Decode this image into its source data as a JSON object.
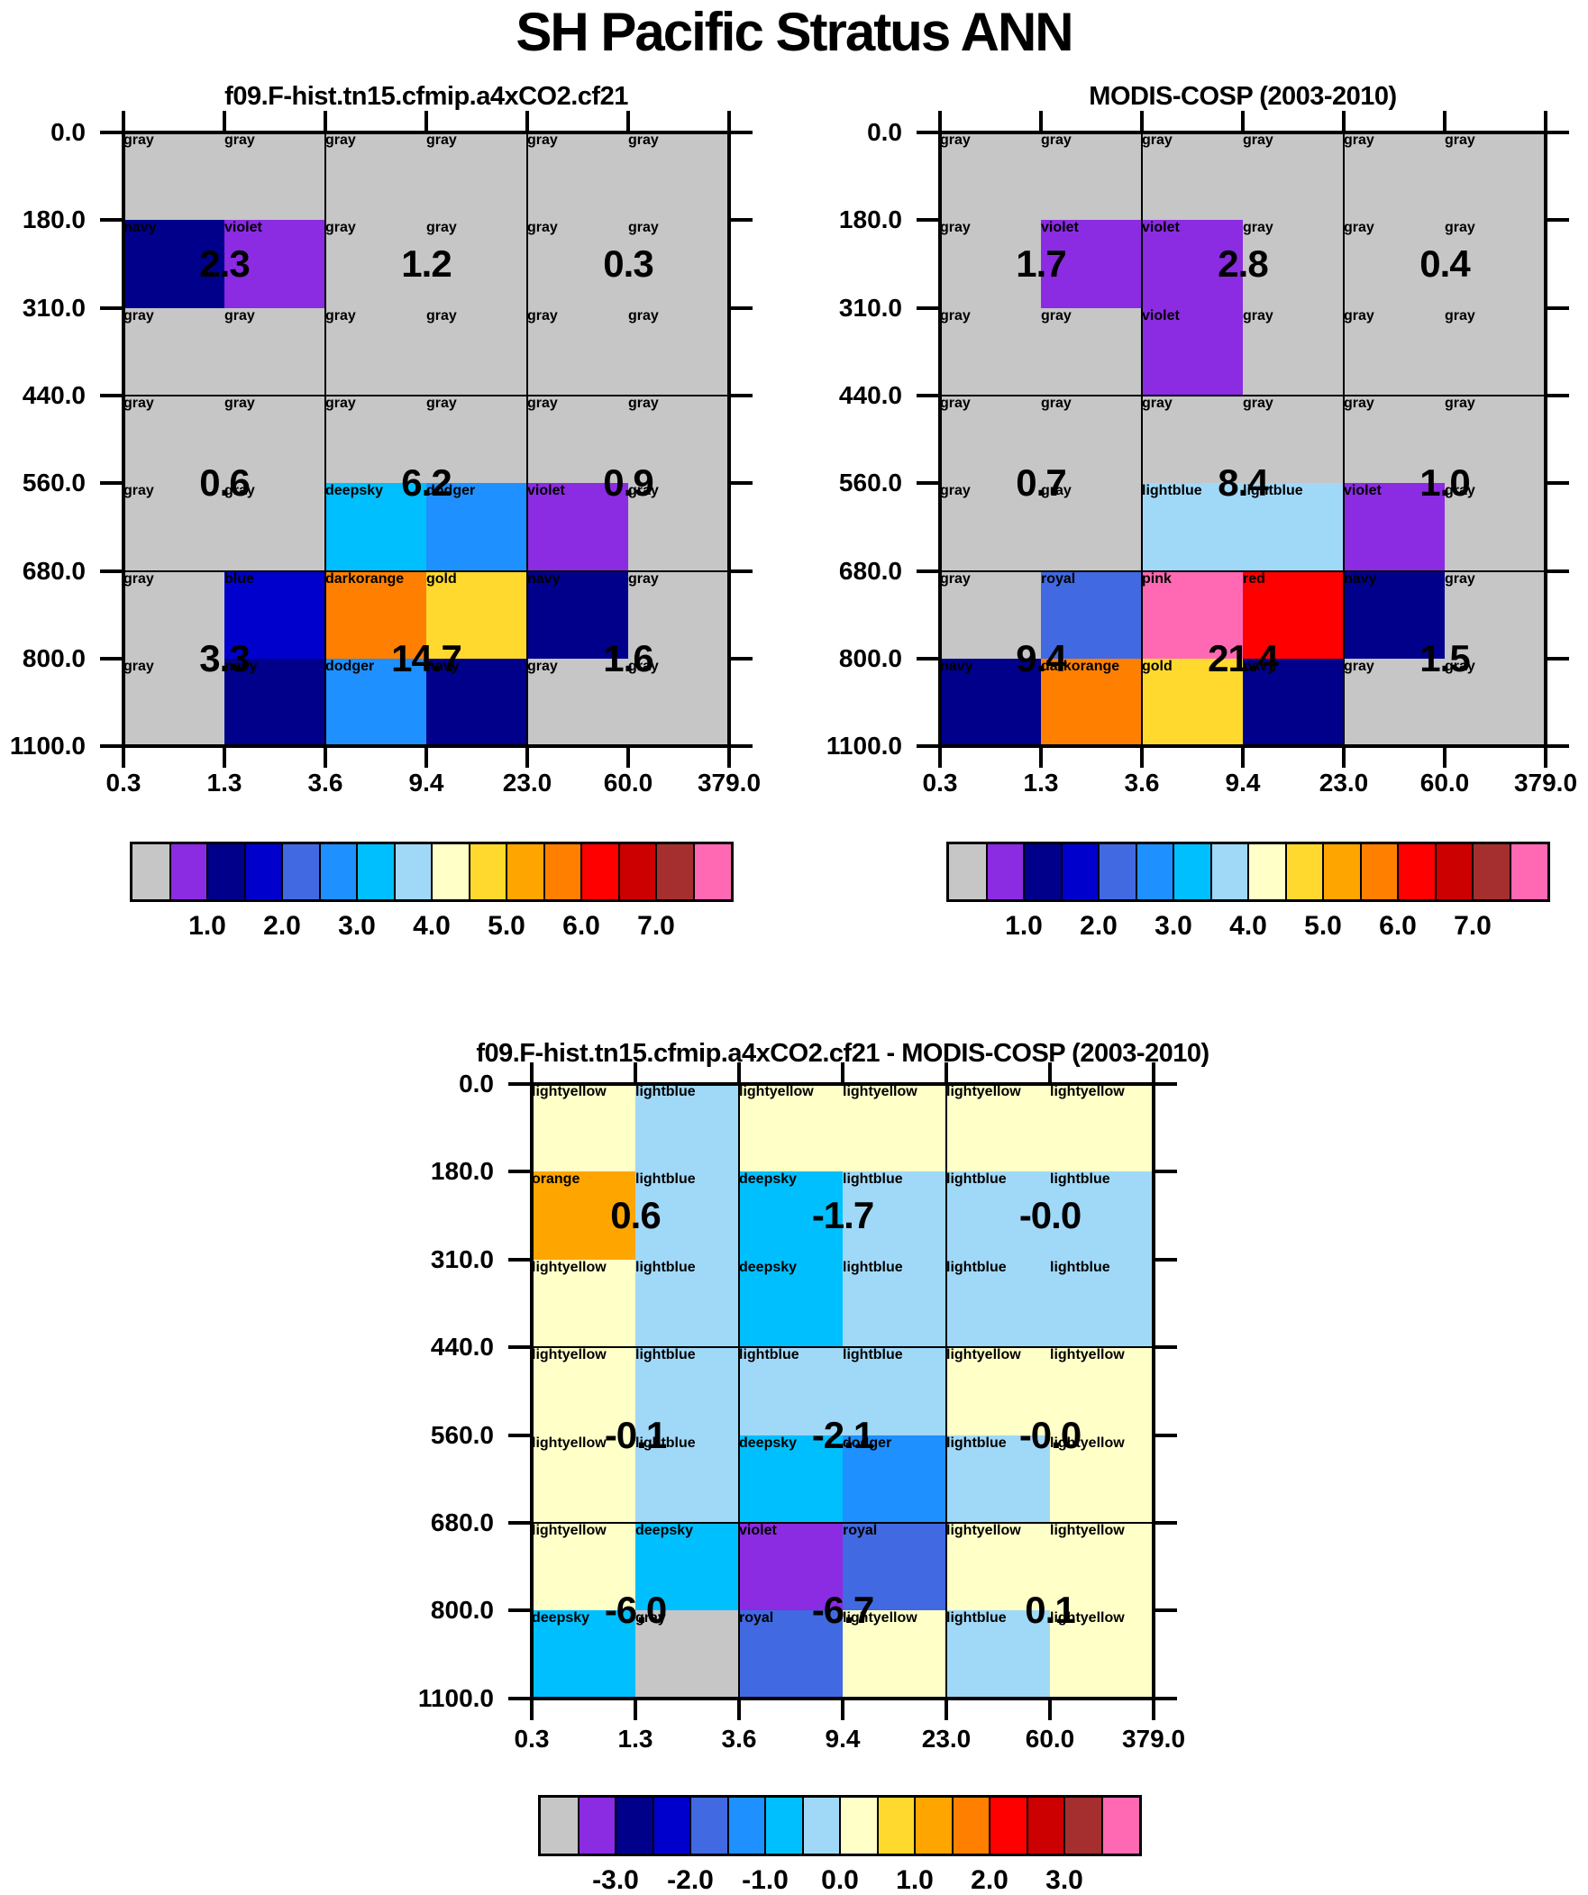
{
  "main_title": "SH Pacific Stratus ANN",
  "palette": {
    "gray": "#C6C6C6",
    "violet": "#8B2BE2",
    "navy": "#00008B",
    "blue": "#0000CD",
    "royal": "#4169E1",
    "dodger": "#1E90FF",
    "deepsky": "#00BFFF",
    "lightblue": "#A0D8F8",
    "lightyellow": "#FFFFC8",
    "gold": "#FFD92E",
    "orange": "#FFA500",
    "darkorange": "#FF8000",
    "red": "#FF0000",
    "red3": "#CC0000",
    "brown": "#A52F2F",
    "pink": "#FF69B4"
  },
  "colorbar_segments": [
    "gray",
    "violet",
    "navy",
    "blue",
    "royal",
    "dodger",
    "deepsky",
    "lightblue",
    "lightyellow",
    "gold",
    "orange",
    "darkorange",
    "red",
    "red3",
    "brown",
    "pink"
  ],
  "x_tick_labels": [
    "0.3",
    "1.3",
    "3.6",
    "9.4",
    "23.0",
    "60.0",
    "379.0"
  ],
  "y_tick_labels": [
    "0.0",
    "180.0",
    "310.0",
    "440.0",
    "560.0",
    "680.0",
    "800.0",
    "1100.0"
  ],
  "panels": [
    {
      "id": "model",
      "title": "f09.F-hist.tn15.cfmip.a4xCO2.cf21",
      "colorbar_tick_labels": [
        "1.0",
        "2.0",
        "3.0",
        "4.0",
        "5.0",
        "6.0",
        "7.0"
      ],
      "block_labels": [
        [
          "2.3",
          "1.2",
          "0.3"
        ],
        [
          "0.6",
          "6.2",
          "0.9"
        ],
        [
          "3.3",
          "14.7",
          "1.6"
        ]
      ],
      "cells": [
        [
          "gray",
          "gray",
          "gray",
          "gray",
          "gray",
          "gray"
        ],
        [
          "navy",
          "violet",
          "gray",
          "gray",
          "gray",
          "gray"
        ],
        [
          "gray",
          "gray",
          "gray",
          "gray",
          "gray",
          "gray"
        ],
        [
          "gray",
          "gray",
          "gray",
          "gray",
          "gray",
          "gray"
        ],
        [
          "gray",
          "gray",
          "deepsky",
          "dodger",
          "violet",
          "gray"
        ],
        [
          "gray",
          "blue",
          "darkorange",
          "gold",
          "navy",
          "gray"
        ],
        [
          "gray",
          "navy",
          "dodger",
          "navy",
          "gray",
          "gray"
        ]
      ]
    },
    {
      "id": "obs",
      "title": "MODIS-COSP (2003-2010)",
      "colorbar_tick_labels": [
        "1.0",
        "2.0",
        "3.0",
        "4.0",
        "5.0",
        "6.0",
        "7.0"
      ],
      "block_labels": [
        [
          "1.7",
          "2.8",
          "0.4"
        ],
        [
          "0.7",
          "8.4",
          "1.0"
        ],
        [
          "9.4",
          "21.4",
          "1.5"
        ]
      ],
      "cells": [
        [
          "gray",
          "gray",
          "gray",
          "gray",
          "gray",
          "gray"
        ],
        [
          "gray",
          "violet",
          "violet",
          "gray",
          "gray",
          "gray"
        ],
        [
          "gray",
          "gray",
          "violet",
          "gray",
          "gray",
          "gray"
        ],
        [
          "gray",
          "gray",
          "gray",
          "gray",
          "gray",
          "gray"
        ],
        [
          "gray",
          "gray",
          "lightblue",
          "lightblue",
          "violet",
          "gray"
        ],
        [
          "gray",
          "royal",
          "pink",
          "red",
          "navy",
          "gray"
        ],
        [
          "navy",
          "darkorange",
          "gold",
          "navy",
          "gray",
          "gray"
        ]
      ]
    },
    {
      "id": "diff",
      "title": "f09.F-hist.tn15.cfmip.a4xCO2.cf21 - MODIS-COSP (2003-2010)",
      "colorbar_tick_labels": [
        "-3.0",
        "-2.0",
        "-1.0",
        "0.0",
        "1.0",
        "2.0",
        "3.0"
      ],
      "block_labels": [
        [
          "0.6",
          "-1.7",
          "-0.0"
        ],
        [
          "-0.1",
          "-2.1",
          "-0.0"
        ],
        [
          "-6.0",
          "-6.7",
          "0.1"
        ]
      ],
      "cells": [
        [
          "lightyellow",
          "lightblue",
          "lightyellow",
          "lightyellow",
          "lightyellow",
          "lightyellow"
        ],
        [
          "orange",
          "lightblue",
          "deepsky",
          "lightblue",
          "lightblue",
          "lightblue"
        ],
        [
          "lightyellow",
          "lightblue",
          "deepsky",
          "lightblue",
          "lightblue",
          "lightblue"
        ],
        [
          "lightyellow",
          "lightblue",
          "lightblue",
          "lightblue",
          "lightyellow",
          "lightyellow"
        ],
        [
          "lightyellow",
          "lightblue",
          "deepsky",
          "dodger",
          "lightblue",
          "lightyellow"
        ],
        [
          "lightyellow",
          "deepsky",
          "violet",
          "royal",
          "lightyellow",
          "lightyellow"
        ],
        [
          "deepsky",
          "gray",
          "royal",
          "lightyellow",
          "lightblue",
          "lightyellow"
        ]
      ]
    }
  ],
  "chart_data": [
    {
      "type": "heatmap",
      "title": "f09.F-hist.tn15.cfmip.a4xCO2.cf21",
      "x_bin_edges": [
        0.3,
        1.3,
        3.6,
        9.4,
        23.0,
        60.0,
        379.0
      ],
      "y_bin_edges": [
        0.0,
        180.0,
        310.0,
        440.0,
        560.0,
        680.0,
        800.0,
        1100.0
      ],
      "block_x_ranges": [
        [
          0.3,
          3.6
        ],
        [
          3.6,
          23.0
        ],
        [
          23.0,
          379.0
        ]
      ],
      "block_y_ranges": [
        [
          0.0,
          440.0
        ],
        [
          440.0,
          680.0
        ],
        [
          680.0,
          1100.0
        ]
      ],
      "block_values": [
        [
          2.3,
          1.2,
          0.3
        ],
        [
          0.6,
          6.2,
          0.9
        ],
        [
          3.3,
          14.7,
          1.6
        ]
      ],
      "colorbar_ticks": [
        1.0,
        2.0,
        3.0,
        4.0,
        5.0,
        6.0,
        7.0
      ],
      "legend_position": "bottom",
      "grid": true
    },
    {
      "type": "heatmap",
      "title": "MODIS-COSP (2003-2010)",
      "x_bin_edges": [
        0.3,
        1.3,
        3.6,
        9.4,
        23.0,
        60.0,
        379.0
      ],
      "y_bin_edges": [
        0.0,
        180.0,
        310.0,
        440.0,
        560.0,
        680.0,
        800.0,
        1100.0
      ],
      "block_x_ranges": [
        [
          0.3,
          3.6
        ],
        [
          3.6,
          23.0
        ],
        [
          23.0,
          379.0
        ]
      ],
      "block_y_ranges": [
        [
          0.0,
          440.0
        ],
        [
          440.0,
          680.0
        ],
        [
          680.0,
          1100.0
        ]
      ],
      "block_values": [
        [
          1.7,
          2.8,
          0.4
        ],
        [
          0.7,
          8.4,
          1.0
        ],
        [
          9.4,
          21.4,
          1.5
        ]
      ],
      "colorbar_ticks": [
        1.0,
        2.0,
        3.0,
        4.0,
        5.0,
        6.0,
        7.0
      ],
      "legend_position": "bottom",
      "grid": true
    },
    {
      "type": "heatmap",
      "title": "f09.F-hist.tn15.cfmip.a4xCO2.cf21 - MODIS-COSP (2003-2010)",
      "x_bin_edges": [
        0.3,
        1.3,
        3.6,
        9.4,
        23.0,
        60.0,
        379.0
      ],
      "y_bin_edges": [
        0.0,
        180.0,
        310.0,
        440.0,
        560.0,
        680.0,
        800.0,
        1100.0
      ],
      "block_x_ranges": [
        [
          0.3,
          3.6
        ],
        [
          3.6,
          23.0
        ],
        [
          23.0,
          379.0
        ]
      ],
      "block_y_ranges": [
        [
          0.0,
          440.0
        ],
        [
          440.0,
          680.0
        ],
        [
          680.0,
          1100.0
        ]
      ],
      "block_values": [
        [
          0.6,
          -1.7,
          -0.0
        ],
        [
          -0.1,
          -2.1,
          -0.0
        ],
        [
          -6.0,
          -6.7,
          0.1
        ]
      ],
      "colorbar_ticks": [
        -3.0,
        -2.0,
        -1.0,
        0.0,
        1.0,
        2.0,
        3.0
      ],
      "legend_position": "bottom",
      "grid": true
    }
  ]
}
